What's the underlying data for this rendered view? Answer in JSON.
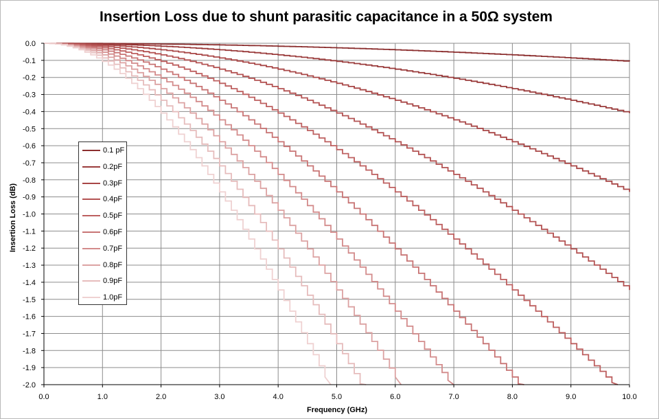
{
  "chart_data": {
    "type": "line",
    "title": "Insertion Loss due to shunt parasitic capacitance in a 50Ω system",
    "xlabel": "Frequency (GHz)",
    "ylabel": "Insertion Loss (dB)",
    "xlim": [
      0.0,
      10.0
    ],
    "ylim": [
      -2.0,
      0.0
    ],
    "x_ticks": [
      "0.0",
      "1.0",
      "2.0",
      "3.0",
      "4.0",
      "5.0",
      "6.0",
      "7.0",
      "8.0",
      "9.0",
      "10.0"
    ],
    "y_ticks": [
      "0.0",
      "-0.1",
      "-0.2",
      "-0.3",
      "-0.4",
      "-0.5",
      "-0.6",
      "-0.7",
      "-0.8",
      "-0.9",
      "-1.0",
      "-1.1",
      "-1.2",
      "-1.3",
      "-1.4",
      "-1.5",
      "-1.6",
      "-1.7",
      "-1.8",
      "-1.9",
      "-2.0"
    ],
    "grid": true,
    "legend_position": "left",
    "x_step_ghz": 0.1,
    "series": [
      {
        "name": "0.1 pF",
        "color": "#8b2e2e",
        "capacitance_pf": 0.1,
        "endpoint": [
          10.0,
          -0.107
        ]
      },
      {
        "name": "0.2pF",
        "color": "#9a3b3b",
        "capacitance_pf": 0.2,
        "endpoint": [
          10.0,
          -0.41
        ]
      },
      {
        "name": "0.3pF",
        "color": "#a84646",
        "capacitance_pf": 0.3,
        "endpoint": [
          10.0,
          -0.87
        ]
      },
      {
        "name": "0.4pF",
        "color": "#b35252",
        "capacitance_pf": 0.4,
        "endpoint": [
          10.0,
          -1.44
        ]
      },
      {
        "name": "0.5pF",
        "color": "#bd5f5f",
        "capacitance_pf": 0.5,
        "endpoint": [
          9.7,
          -2.0
        ]
      },
      {
        "name": "0.6pF",
        "color": "#c87474",
        "capacitance_pf": 0.6,
        "endpoint": [
          8.1,
          -2.0
        ]
      },
      {
        "name": "0.7pF",
        "color": "#d38b8b",
        "capacitance_pf": 0.7,
        "endpoint": [
          6.9,
          -2.0
        ]
      },
      {
        "name": "0.8pF",
        "color": "#dca2a2",
        "capacitance_pf": 0.8,
        "endpoint": [
          6.1,
          -2.0
        ]
      },
      {
        "name": "0.9pF",
        "color": "#e6bcbc",
        "capacitance_pf": 0.9,
        "endpoint": [
          5.4,
          -2.0
        ]
      },
      {
        "name": "1.0pF",
        "color": "#efd1d1",
        "capacitance_pf": 1.0,
        "endpoint": [
          4.8,
          -2.0
        ]
      }
    ]
  }
}
